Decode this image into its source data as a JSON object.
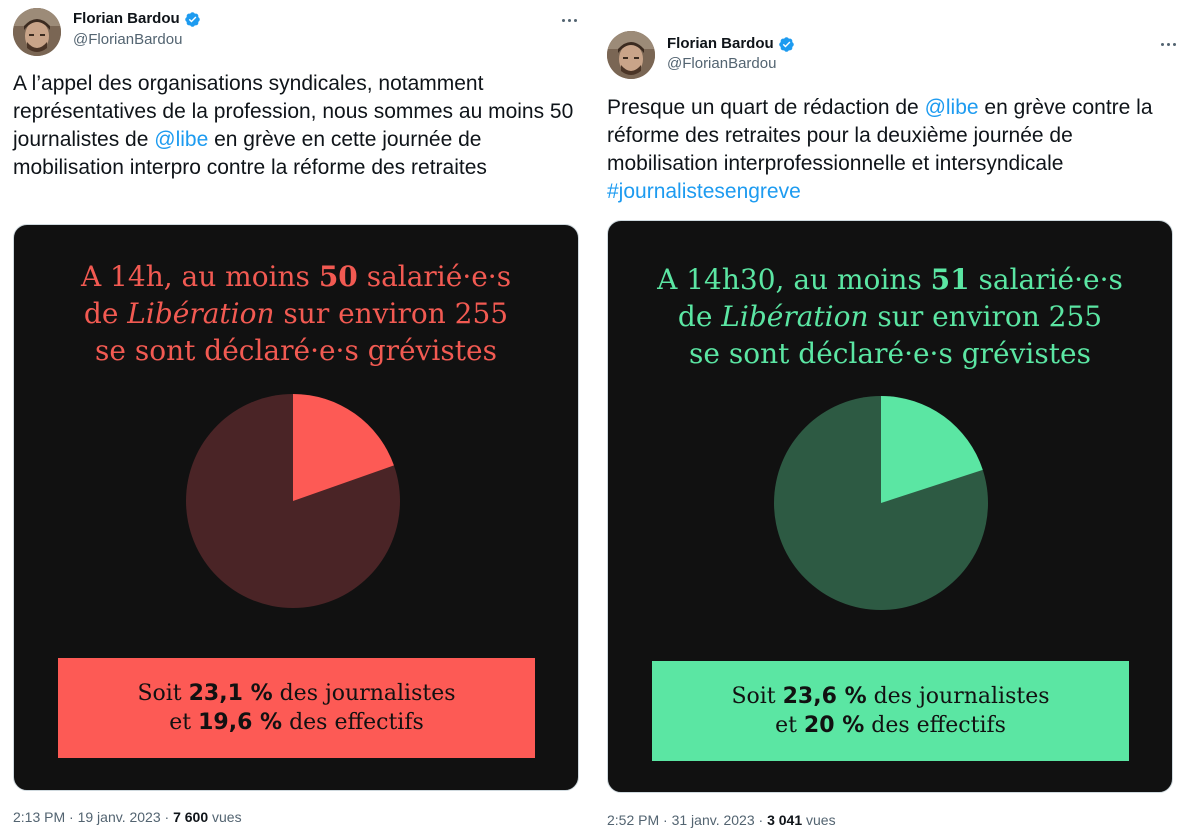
{
  "tweets": [
    {
      "author": {
        "name": "Florian Bardou",
        "handle": "@FlorianBardou"
      },
      "text": {
        "part1": "A l’appel des organisations syndicales, notamment représentatives de la profession, nous sommes au moins 50 journalistes de ",
        "mention": "@libe",
        "part2": " en grève en cette journée de mobilisation interpro contre la réforme des retraites"
      },
      "media": {
        "headline": {
          "l1a": "A 14h, au moins ",
          "l1b": "50",
          "l1c": " salarié·e·s",
          "l2a": "de ",
          "l2b": "Libération",
          "l2c": " sur environ 255",
          "l3": "se sont déclaré·e·s grévistes"
        },
        "stat": {
          "l1a": "Soit ",
          "l1b": "23,1 %",
          "l1c": " des journalistes",
          "l2a": "et ",
          "l2b": "19,6 %",
          "l2c": " des effectifs"
        },
        "strike_share": 0.196,
        "accent_color": "#fd5a55",
        "dark_color": "#4a2426",
        "headline_color": "#f25a52"
      },
      "meta": {
        "time": "2:13 PM",
        "date": "19 janv. 2023",
        "views": "7 600",
        "views_label": "vues"
      }
    },
    {
      "author": {
        "name": "Florian Bardou",
        "handle": "@FlorianBardou"
      },
      "text": {
        "part1": "Presque un quart de rédaction de ",
        "mention": "@libe",
        "part2": " en grève contre la réforme des retraites pour la deuxième journée de mobilisation interprofessionnelle et intersyndicale ",
        "hashtag": "#journalistesengreve"
      },
      "media": {
        "headline": {
          "l1a": "A 14h30, au moins ",
          "l1b": "51",
          "l1c": " salarié·e·s",
          "l2a": "de ",
          "l2b": "Libération",
          "l2c": " sur environ 255",
          "l3": "se sont déclaré·e·s grévistes"
        },
        "stat": {
          "l1a": "Soit ",
          "l1b": "23,6 %",
          "l1c": " des journalistes",
          "l2a": "et ",
          "l2b": "20 %",
          "l2c": " des effectifs"
        },
        "strike_share": 0.2,
        "accent_color": "#5be6a3",
        "dark_color": "#2d5a43",
        "headline_color": "#5be6a3"
      },
      "meta": {
        "time": "2:52 PM",
        "date": "31 janv. 2023",
        "views": "3 041",
        "views_label": "vues"
      }
    }
  ],
  "separator": "·",
  "verified_color": "#1d9bf0"
}
